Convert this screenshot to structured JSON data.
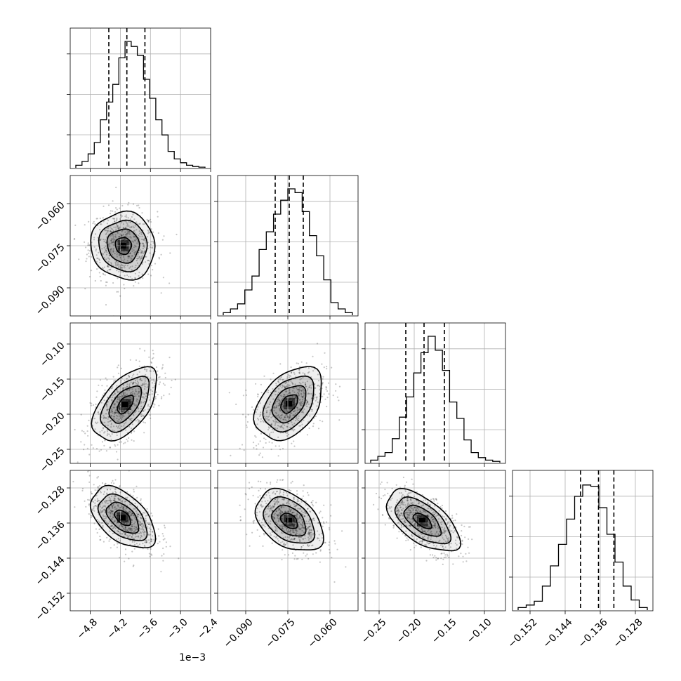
{
  "chart_data": {
    "type": "corner",
    "x_offset_text": "1e−3",
    "grid": true,
    "parameters": [
      {
        "range": [
          -5.2,
          -2.4
        ],
        "ticks": [
          -4.8,
          -4.2,
          -3.6,
          -3.0,
          -2.4
        ],
        "tick_labels": [
          "−4.8",
          "−4.2",
          "−3.6",
          "−3.0",
          "−2.4"
        ],
        "quantiles": [
          -4.43,
          -4.07,
          -3.71
        ],
        "histogram": [
          0.02,
          0.05,
          0.11,
          0.2,
          0.38,
          0.52,
          0.66,
          0.87,
          1.0,
          0.96,
          0.89,
          0.7,
          0.55,
          0.38,
          0.26,
          0.13,
          0.07,
          0.04,
          0.02,
          0.01,
          0.005
        ]
      },
      {
        "range": [
          -0.1,
          -0.05
        ],
        "ticks": [
          -0.09,
          -0.075,
          -0.06
        ],
        "tick_labels": [
          "−0.090",
          "−0.075",
          "−0.060"
        ],
        "quantiles": [
          -0.0795,
          -0.0745,
          -0.0695
        ],
        "histogram": [
          0.02,
          0.05,
          0.09,
          0.2,
          0.31,
          0.52,
          0.66,
          0.8,
          0.91,
          1.0,
          0.97,
          0.82,
          0.63,
          0.47,
          0.28,
          0.1,
          0.05,
          0.02
        ]
      },
      {
        "range": [
          -0.27,
          -0.07
        ],
        "ticks": [
          -0.25,
          -0.2,
          -0.15,
          -0.1
        ],
        "tick_labels": [
          "−0.25",
          "−0.20",
          "−0.15",
          "−0.10"
        ],
        "quantiles": [
          -0.212,
          -0.186,
          -0.157
        ],
        "histogram": [
          0.02,
          0.05,
          0.08,
          0.19,
          0.36,
          0.52,
          0.71,
          0.87,
          1.0,
          0.89,
          0.73,
          0.48,
          0.35,
          0.18,
          0.08,
          0.04,
          0.02,
          0.01
        ]
      },
      {
        "range": [
          -0.156,
          -0.124
        ],
        "ticks": [
          -0.152,
          -0.144,
          -0.136,
          -0.128
        ],
        "tick_labels": [
          "−0.152",
          "−0.144",
          "−0.136",
          "−0.128"
        ],
        "quantiles": [
          -0.1405,
          -0.1364,
          -0.1329
        ],
        "histogram": [
          0.02,
          0.04,
          0.07,
          0.19,
          0.35,
          0.52,
          0.72,
          0.9,
          0.99,
          0.98,
          0.81,
          0.6,
          0.38,
          0.19,
          0.08,
          0.02
        ]
      }
    ],
    "pairs": [
      {
        "row": 1,
        "col": 0,
        "center": [
          -4.14,
          -0.075
        ],
        "sigma": [
          0.32,
          0.006
        ],
        "rho": -0.05
      },
      {
        "row": 2,
        "col": 0,
        "center": [
          -4.1,
          -0.186
        ],
        "sigma": [
          0.32,
          0.026
        ],
        "rho": 0.55
      },
      {
        "row": 2,
        "col": 1,
        "center": [
          -0.0745,
          -0.185
        ],
        "sigma": [
          0.006,
          0.026
        ],
        "rho": 0.4
      },
      {
        "row": 3,
        "col": 0,
        "center": [
          -4.15,
          -0.1348
        ],
        "sigma": [
          0.32,
          0.0035
        ],
        "rho": -0.5
      },
      {
        "row": 3,
        "col": 1,
        "center": [
          -0.0745,
          -0.1355
        ],
        "sigma": [
          0.006,
          0.0035
        ],
        "rho": -0.4
      },
      {
        "row": 3,
        "col": 2,
        "center": [
          -0.188,
          -0.1355
        ],
        "sigma": [
          0.026,
          0.0035
        ],
        "rho": -0.6
      }
    ]
  }
}
